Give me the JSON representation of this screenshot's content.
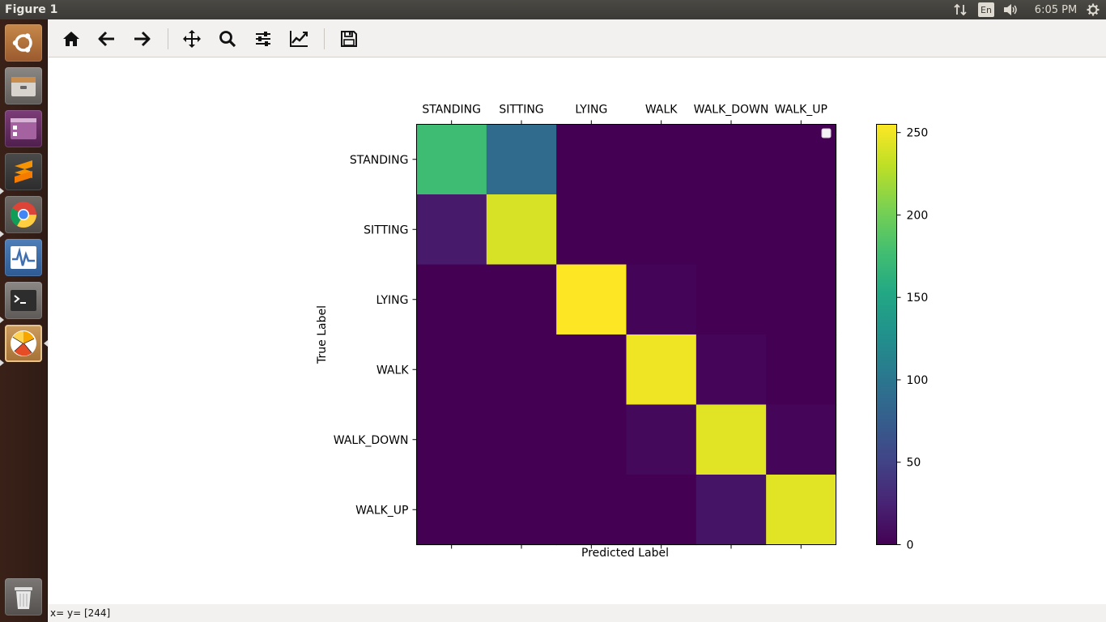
{
  "window": {
    "title": "Figure 1"
  },
  "tray": {
    "lang": "En",
    "clock": "6:05 PM",
    "icons": [
      "network-arrows-icon",
      "volume-icon",
      "gear-icon"
    ]
  },
  "launcher": {
    "items": [
      "ubuntu-dash-icon",
      "files-icon",
      "app-launcher-icon",
      "sublime-text-icon",
      "chrome-icon",
      "system-monitor-icon",
      "terminal-icon",
      "python-app-icon",
      "trash-icon"
    ]
  },
  "toolbar": {
    "buttons": [
      "home-icon",
      "back-arrow-icon",
      "forward-arrow-icon",
      "pan-icon",
      "zoom-icon",
      "configure-subplots-icon",
      "edit-axis-icon",
      "save-icon"
    ]
  },
  "status": {
    "text": "x= y= [244]"
  },
  "colors": {
    "low": "#440154",
    "high": "#fde725"
  },
  "chart_data": {
    "type": "heatmap",
    "title": "",
    "xlabel": "Predicted Label",
    "ylabel": "True Label",
    "x_categories": [
      "STANDING",
      "SITTING",
      "LYING",
      "WALK",
      "WALK_DOWN",
      "WALK_UP"
    ],
    "y_categories": [
      "STANDING",
      "SITTING",
      "LYING",
      "WALK",
      "WALK_DOWN",
      "WALK_UP"
    ],
    "values": [
      [
        175,
        88,
        0,
        0,
        0,
        0
      ],
      [
        18,
        240,
        0,
        0,
        0,
        0
      ],
      [
        0,
        0,
        255,
        2,
        0,
        0
      ],
      [
        0,
        0,
        0,
        250,
        4,
        0
      ],
      [
        0,
        0,
        0,
        6,
        244,
        4
      ],
      [
        0,
        0,
        0,
        0,
        14,
        244
      ]
    ],
    "colorbar": {
      "min": 0,
      "max": 255,
      "ticks": [
        0,
        50,
        100,
        150,
        200,
        250
      ],
      "colormap": "viridis"
    },
    "legend": "top-right"
  }
}
